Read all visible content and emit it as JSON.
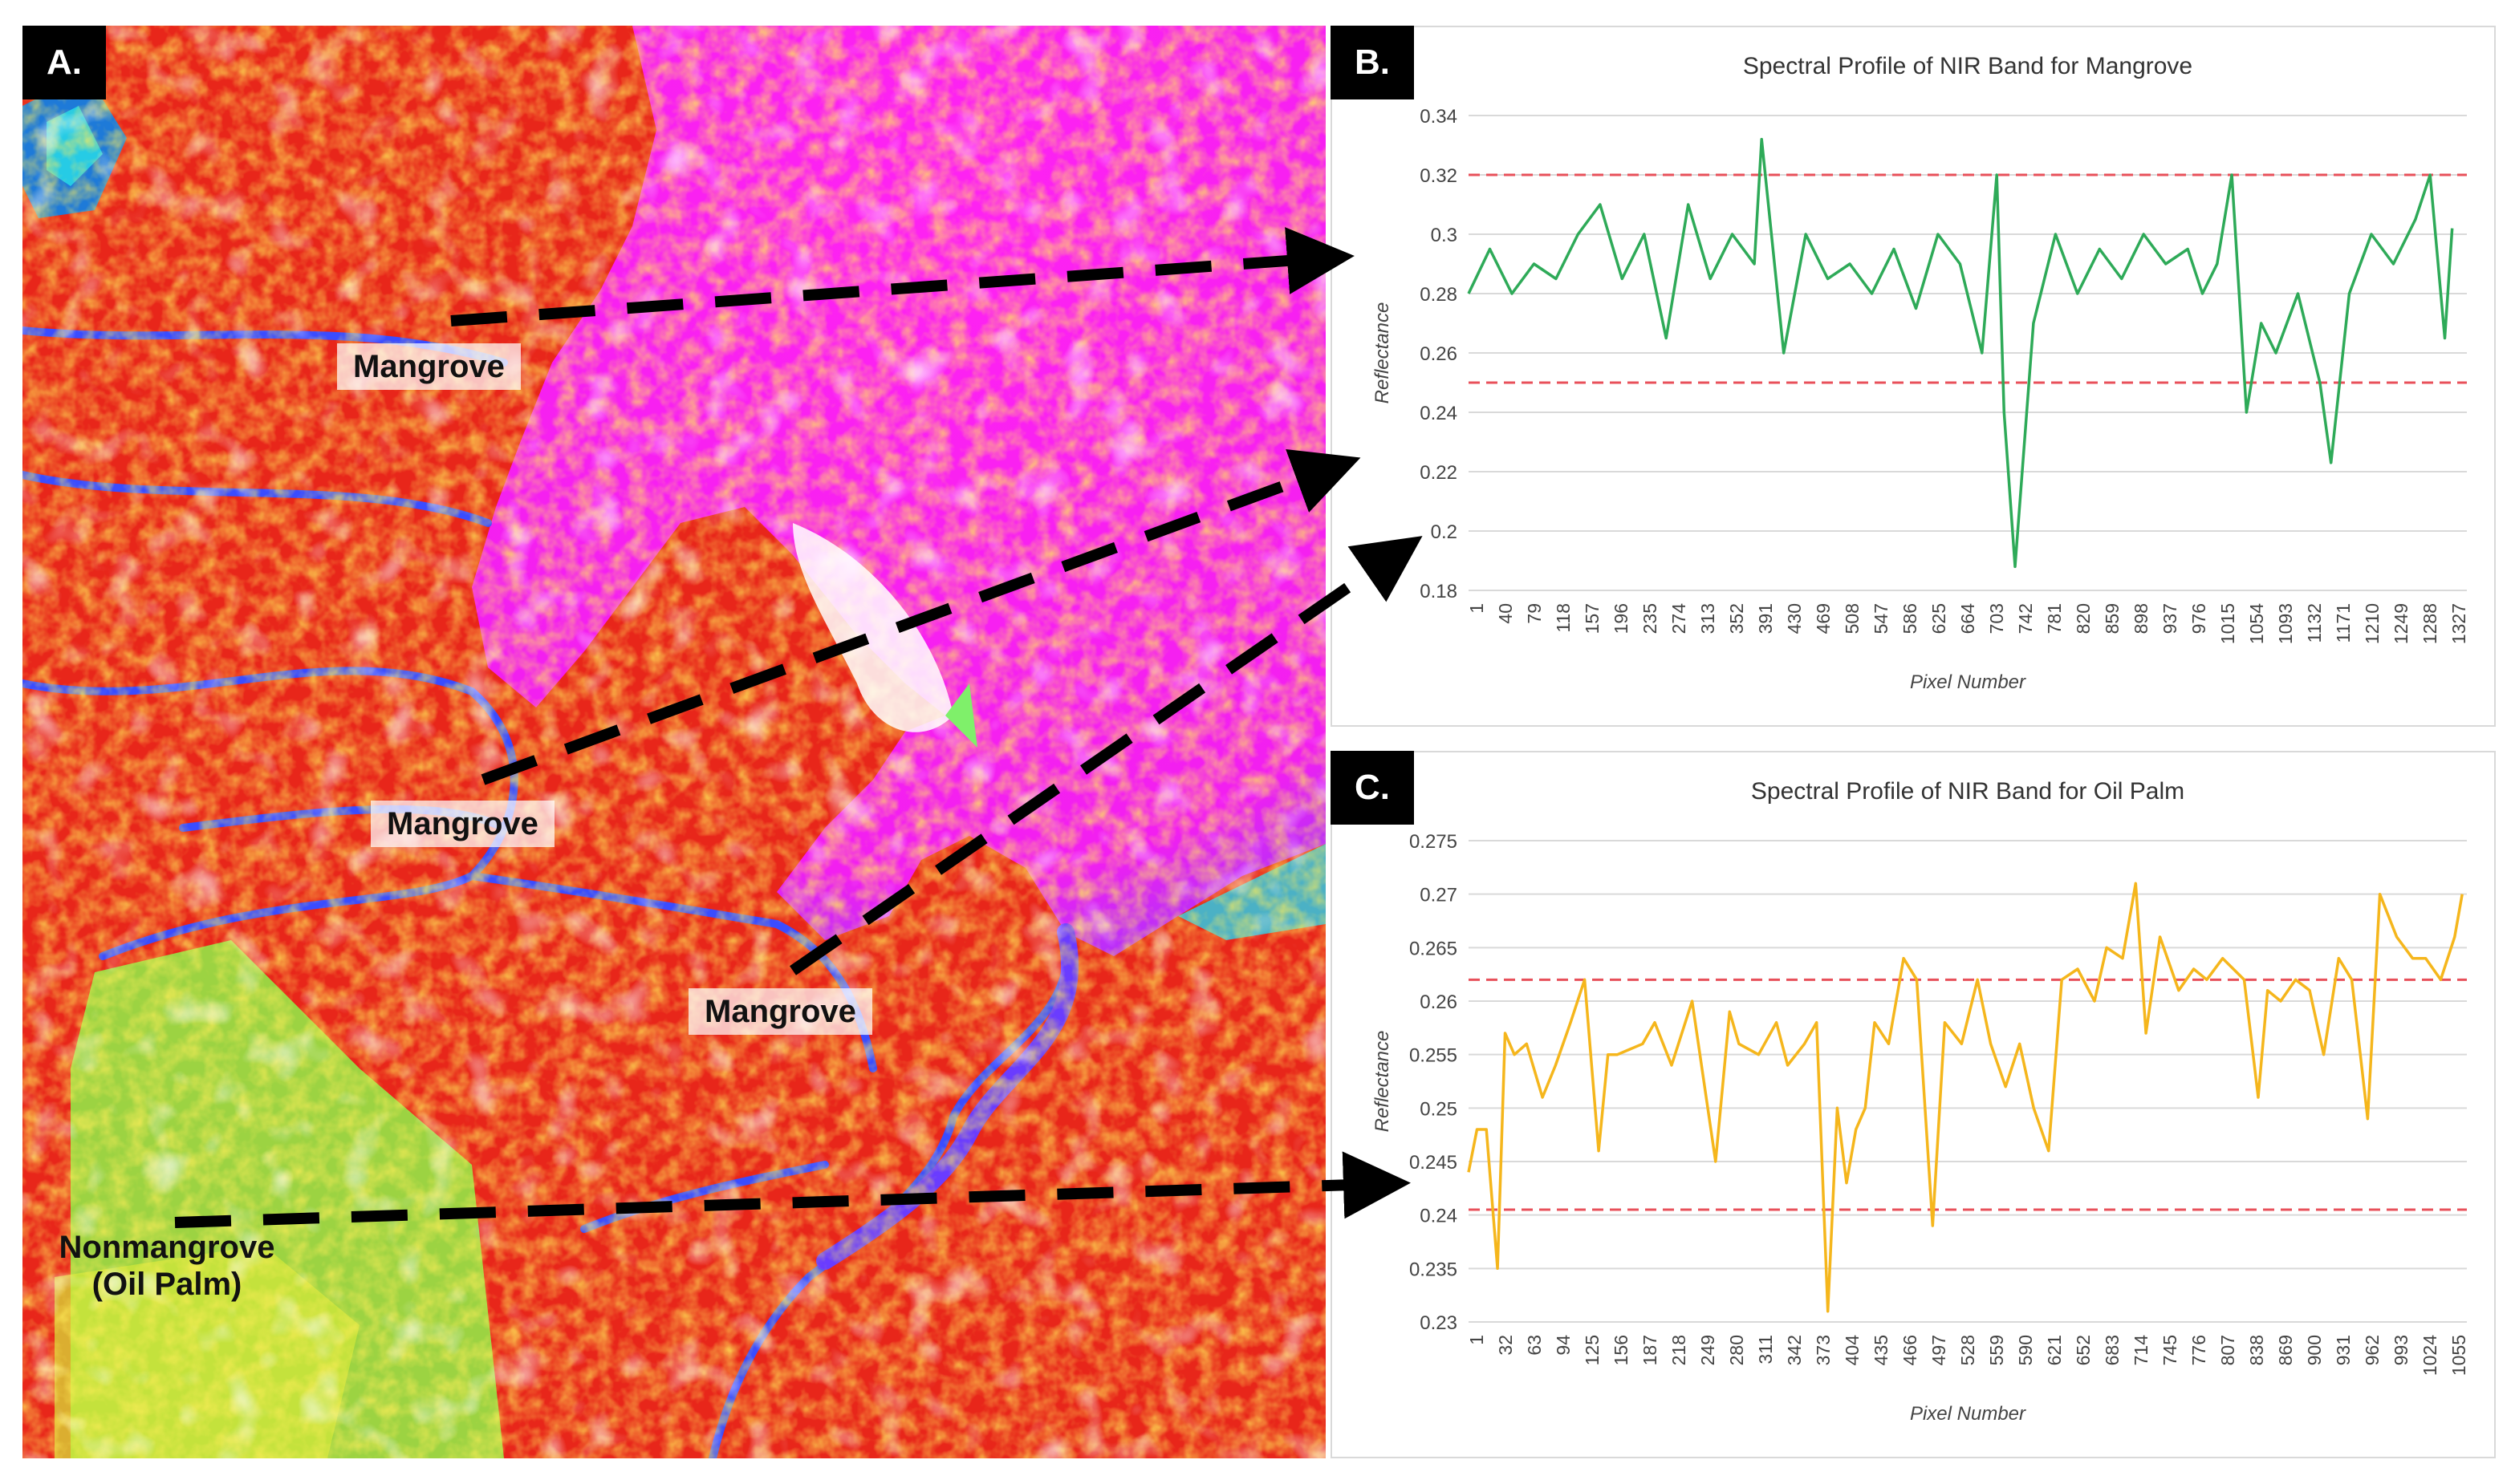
{
  "panels": {
    "a": {
      "letter": "A.",
      "labels": [
        "Mangrove",
        "Mangrove",
        "Mangrove"
      ],
      "nonmangrove_line1": "Nonmangrove",
      "nonmangrove_line2": "(Oil Palm)"
    },
    "b": {
      "letter": "B."
    },
    "c": {
      "letter": "C."
    }
  },
  "colors": {
    "mangrove_series": "#2eaa58",
    "oilpalm_series": "#f5b61c",
    "threshold": "#e8505a",
    "water": "#ff1ff0",
    "vegetation": "#e8261a",
    "nonmangrove": "#8ef24a"
  },
  "chart_data": [
    {
      "id": "B",
      "type": "line",
      "title": "Spectral Profile of NIR Band for Mangrove",
      "xlabel": "Pixel Number",
      "ylabel": "Reflectance",
      "ylim": [
        0.18,
        0.34
      ],
      "yticks": [
        0.18,
        0.2,
        0.22,
        0.24,
        0.26,
        0.28,
        0.3,
        0.32,
        0.34
      ],
      "ytick_labels": [
        "0.18",
        "0.2",
        "0.22",
        "0.24",
        "0.26",
        "0.28",
        "0.3",
        "0.32",
        "0.34"
      ],
      "xtick_labels": [
        "1",
        "40",
        "79",
        "118",
        "157",
        "196",
        "235",
        "274",
        "313",
        "352",
        "391",
        "430",
        "469",
        "508",
        "547",
        "586",
        "625",
        "664",
        "703",
        "742",
        "781",
        "820",
        "859",
        "898",
        "937",
        "976",
        "1015",
        "1054",
        "1093",
        "1132",
        "1171",
        "1210",
        "1249",
        "1288",
        "1327"
      ],
      "xlim": [
        1,
        1360
      ],
      "grid": true,
      "thresholds": [
        0.32,
        0.25
      ],
      "series": [
        {
          "x": [
            1,
            30,
            60,
            90,
            120,
            150,
            180,
            210,
            240,
            270,
            300,
            330,
            360,
            390,
            400,
            430,
            460,
            490,
            520,
            550,
            580,
            610,
            640,
            670,
            700,
            720,
            730,
            745,
            770,
            800,
            830,
            860,
            890,
            920,
            950,
            980,
            1000,
            1020,
            1040,
            1060,
            1080,
            1100,
            1130,
            1160,
            1175,
            1200,
            1230,
            1260,
            1290,
            1310,
            1330,
            1340
          ],
          "values": [
            0.28,
            0.295,
            0.28,
            0.29,
            0.285,
            0.3,
            0.31,
            0.285,
            0.3,
            0.265,
            0.31,
            0.285,
            0.3,
            0.29,
            0.332,
            0.26,
            0.3,
            0.285,
            0.29,
            0.28,
            0.295,
            0.275,
            0.3,
            0.29,
            0.26,
            0.32,
            0.24,
            0.188,
            0.27,
            0.3,
            0.28,
            0.295,
            0.285,
            0.3,
            0.29,
            0.295,
            0.28,
            0.29,
            0.32,
            0.24,
            0.27,
            0.26,
            0.28,
            0.25,
            0.223,
            0.28,
            0.3,
            0.29,
            0.305,
            0.32,
            0.265,
            0.302
          ]
        }
      ]
    },
    {
      "id": "C",
      "type": "line",
      "title": "Spectral Profile of NIR Band for Oil Palm",
      "xlabel": "Pixel Number",
      "ylabel": "Reflectance",
      "ylim": [
        0.23,
        0.275
      ],
      "yticks": [
        0.23,
        0.235,
        0.24,
        0.245,
        0.25,
        0.255,
        0.26,
        0.265,
        0.27,
        0.275
      ],
      "ytick_labels": [
        "0.23",
        "0.235",
        "0.24",
        "0.245",
        "0.25",
        "0.255",
        "0.26",
        "0.265",
        "0.27",
        "0.275"
      ],
      "xtick_labels": [
        "1",
        "32",
        "63",
        "94",
        "125",
        "156",
        "187",
        "218",
        "249",
        "280",
        "311",
        "342",
        "373",
        "404",
        "435",
        "466",
        "497",
        "528",
        "559",
        "590",
        "621",
        "652",
        "683",
        "714",
        "745",
        "776",
        "807",
        "838",
        "869",
        "900",
        "931",
        "962",
        "993",
        "1024",
        "1055"
      ],
      "xlim": [
        1,
        1068
      ],
      "grid": true,
      "thresholds": [
        0.262,
        0.2405
      ],
      "series": [
        {
          "x": [
            1,
            10,
            20,
            32,
            40,
            50,
            63,
            80,
            94,
            110,
            125,
            140,
            150,
            160,
            187,
            200,
            218,
            240,
            265,
            280,
            290,
            311,
            330,
            342,
            360,
            373,
            385,
            395,
            405,
            415,
            425,
            435,
            450,
            466,
            480,
            497,
            510,
            528,
            545,
            559,
            575,
            590,
            605,
            621,
            635,
            652,
            670,
            683,
            700,
            714,
            725,
            740,
            760,
            776,
            790,
            807,
            830,
            845,
            855,
            869,
            885,
            900,
            915,
            931,
            945,
            962,
            975,
            993,
            1010,
            1024,
            1040,
            1055,
            1063
          ],
          "values": [
            0.244,
            0.248,
            0.248,
            0.235,
            0.257,
            0.255,
            0.256,
            0.251,
            0.254,
            0.258,
            0.262,
            0.246,
            0.255,
            0.255,
            0.256,
            0.258,
            0.254,
            0.26,
            0.245,
            0.259,
            0.256,
            0.255,
            0.258,
            0.254,
            0.256,
            0.258,
            0.231,
            0.25,
            0.243,
            0.248,
            0.25,
            0.258,
            0.256,
            0.264,
            0.262,
            0.239,
            0.258,
            0.256,
            0.262,
            0.256,
            0.252,
            0.256,
            0.25,
            0.246,
            0.262,
            0.263,
            0.26,
            0.265,
            0.264,
            0.271,
            0.257,
            0.266,
            0.261,
            0.263,
            0.262,
            0.264,
            0.262,
            0.251,
            0.261,
            0.26,
            0.262,
            0.261,
            0.255,
            0.264,
            0.262,
            0.249,
            0.27,
            0.266,
            0.264,
            0.264,
            0.262,
            0.266,
            0.27
          ]
        }
      ]
    }
  ]
}
